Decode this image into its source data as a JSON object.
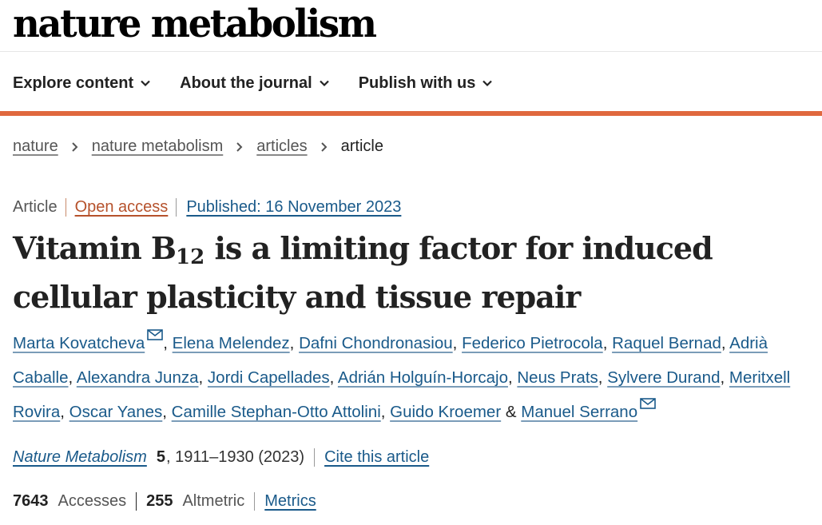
{
  "masthead": {
    "logo_text": "nature metabolism"
  },
  "nav": {
    "items": [
      {
        "label": "Explore content"
      },
      {
        "label": "About the journal"
      },
      {
        "label": "Publish with us"
      }
    ]
  },
  "breadcrumb": {
    "items": [
      "nature",
      "nature metabolism",
      "articles"
    ],
    "current": "article"
  },
  "article": {
    "type": "Article",
    "access": "Open access",
    "published": "Published: 16 November 2023",
    "title_pre": "Vitamin B",
    "title_sub": "12",
    "title_post": " is a limiting factor for induced cellular plasticity and tissue repair",
    "authors": [
      "Marta Kovatcheva",
      "Elena Melendez",
      "Dafni Chondronasiou",
      "Federico Pietrocola",
      "Raquel Bernad",
      "Adrià Caballe",
      "Alexandra Junza",
      "Jordi Capellades",
      "Adrián Holguín-Horcajo",
      "Neus Prats",
      "Sylvere Durand",
      "Meritxell Rovira",
      "Oscar Yanes",
      "Camille Stephan-Otto Attolini",
      "Guido Kroemer",
      "Manuel Serrano"
    ],
    "author_sep": ", ",
    "author_last_sep": " & ",
    "journal": "Nature Metabolism",
    "volume": "5",
    "pages_year": ", 1911–1930 (2023)",
    "cite_label": "Cite this article"
  },
  "metrics": {
    "accesses_value": "7643",
    "accesses_label": "Accesses",
    "altmetric_value": "255",
    "altmetric_label": "Altmetric",
    "link_label": "Metrics"
  },
  "colors": {
    "accent": "#e0683e",
    "link": "#1a5a8a",
    "open_access": "#b6522c"
  },
  "icons": [
    "chevron-down-icon",
    "chevron-right-icon",
    "mail-icon"
  ]
}
